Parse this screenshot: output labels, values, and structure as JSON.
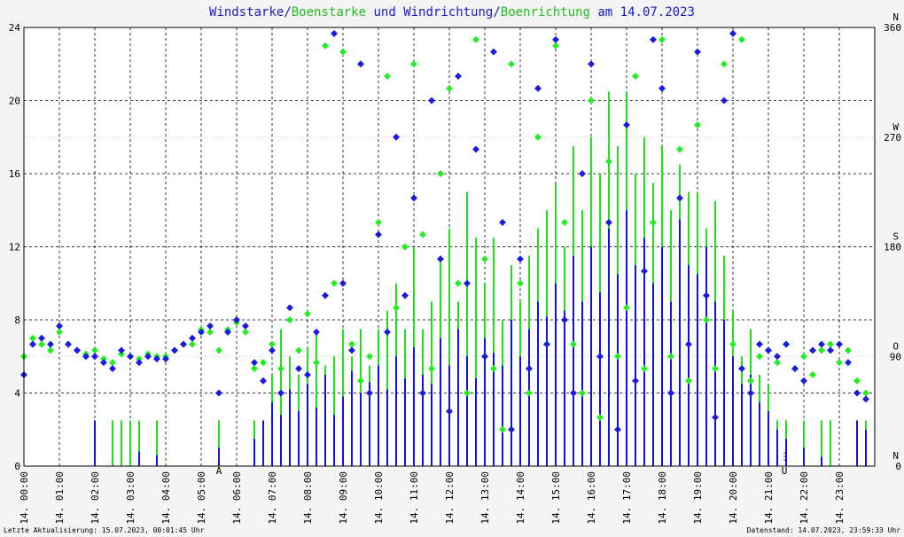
{
  "chart_data": {
    "type": "combo",
    "title_parts": [
      {
        "text": "Windstarke",
        "color": "#1a1ac8"
      },
      {
        "text": "/",
        "color": "#1a1ac8"
      },
      {
        "text": "Boenstarke",
        "color": "#22c022"
      },
      {
        "text": " und ",
        "color": "#1a1ac8"
      },
      {
        "text": "Windrichtung",
        "color": "#1a1ac8"
      },
      {
        "text": "/",
        "color": "#1a1ac8"
      },
      {
        "text": "Boenrichtung",
        "color": "#22c022"
      },
      {
        "text": " am 14.07.2023",
        "color": "#1a1ac8"
      }
    ],
    "xlim": [
      0,
      24
    ],
    "xticks": [
      {
        "value": 0,
        "label": "14. 00:00"
      },
      {
        "value": 1,
        "label": "14. 01:00"
      },
      {
        "value": 2,
        "label": "14. 02:00"
      },
      {
        "value": 3,
        "label": "14. 03:00"
      },
      {
        "value": 4,
        "label": "14. 04:00"
      },
      {
        "value": 5,
        "label": "14. 05:00"
      },
      {
        "value": 6,
        "label": "14. 06:00"
      },
      {
        "value": 7,
        "label": "14. 07:00"
      },
      {
        "value": 8,
        "label": "14. 08:00"
      },
      {
        "value": 9,
        "label": "14. 09:00"
      },
      {
        "value": 10,
        "label": "14. 10:00"
      },
      {
        "value": 11,
        "label": "14. 11:00"
      },
      {
        "value": 12,
        "label": "14. 12:00"
      },
      {
        "value": 13,
        "label": "14. 13:00"
      },
      {
        "value": 14,
        "label": "14. 14:00"
      },
      {
        "value": 15,
        "label": "14. 15:00"
      },
      {
        "value": 16,
        "label": "14. 16:00"
      },
      {
        "value": 17,
        "label": "14. 17:00"
      },
      {
        "value": 18,
        "label": "14. 18:00"
      },
      {
        "value": 19,
        "label": "14. 19:00"
      },
      {
        "value": 20,
        "label": "14. 20:00"
      },
      {
        "value": 21,
        "label": "14. 21:00"
      },
      {
        "value": 22,
        "label": "14. 22:00"
      },
      {
        "value": 23,
        "label": "14. 23:00"
      }
    ],
    "ylim": [
      0,
      24
    ],
    "yticks": [
      0,
      4,
      8,
      12,
      16,
      20,
      24
    ],
    "y2lim": [
      0,
      360
    ],
    "y2ticks": [
      0,
      90,
      180,
      270,
      360
    ],
    "y2tick_directions": [
      "N",
      "O",
      "S",
      "W",
      "N"
    ],
    "grid": true,
    "events": [
      {
        "x": 5.5,
        "label": "A"
      },
      {
        "x": 21.45,
        "label": "U"
      }
    ],
    "x": [
      0,
      0.25,
      0.5,
      0.75,
      1,
      1.25,
      1.5,
      1.75,
      2,
      2.25,
      2.5,
      2.75,
      3,
      3.25,
      3.5,
      3.75,
      4,
      4.25,
      4.5,
      4.75,
      5,
      5.25,
      5.5,
      5.75,
      6,
      6.25,
      6.5,
      6.75,
      7,
      7.25,
      7.5,
      7.75,
      8,
      8.25,
      8.5,
      8.75,
      9,
      9.25,
      9.5,
      9.75,
      10,
      10.25,
      10.5,
      10.75,
      11,
      11.25,
      11.5,
      11.75,
      12,
      12.25,
      12.5,
      12.75,
      13,
      13.25,
      13.5,
      13.75,
      14,
      14.25,
      14.5,
      14.75,
      15,
      15.25,
      15.5,
      15.75,
      16,
      16.25,
      16.5,
      16.75,
      17,
      17.25,
      17.5,
      17.75,
      18,
      18.25,
      18.5,
      18.75,
      19,
      19.25,
      19.5,
      19.75,
      20,
      20.25,
      20.5,
      20.75,
      21,
      21.25,
      21.5,
      21.75,
      22,
      22.25,
      22.5,
      22.75,
      23,
      23.25,
      23.5,
      23.75
    ],
    "series": [
      {
        "name": "Boenstarke",
        "type": "bar",
        "color": "#22dd22",
        "values": [
          0,
          0,
          0,
          0,
          0,
          0,
          0,
          0,
          2.5,
          0,
          2.5,
          2.5,
          2.5,
          2.5,
          0,
          2.5,
          0,
          0,
          0,
          0,
          0,
          0,
          2.5,
          0,
          0,
          0,
          2.5,
          2.5,
          5.0,
          7.5,
          6.0,
          5.0,
          6.5,
          7.5,
          5.5,
          6.0,
          7.5,
          6.0,
          7.5,
          5.5,
          7.5,
          8.5,
          10.0,
          7.5,
          12.0,
          7.5,
          9.0,
          11.5,
          13.0,
          9.0,
          15.0,
          12.5,
          10.0,
          12.5,
          8.0,
          11.0,
          9.0,
          11.5,
          13.0,
          14.0,
          15.5,
          12.0,
          17.5,
          14.0,
          18.0,
          16.0,
          20.5,
          17.5,
          20.5,
          16.0,
          18.0,
          15.5,
          17.5,
          14.0,
          16.5,
          15.0,
          15.0,
          13.0,
          14.5,
          11.5,
          8.5,
          6.0,
          7.5,
          5.0,
          4.5,
          2.5,
          2.5,
          0,
          2.5,
          0,
          2.5,
          2.5,
          0,
          0,
          2.5,
          2.5
        ]
      },
      {
        "name": "Windstarke",
        "type": "bar",
        "color": "#1111dd",
        "values": [
          0,
          0,
          0,
          0,
          0,
          0,
          0,
          0,
          2.5,
          0,
          0,
          0,
          0,
          0.8,
          0,
          0.6,
          0,
          0,
          0,
          0,
          0,
          0,
          1.0,
          0,
          0,
          0,
          1.5,
          2.5,
          3.5,
          2.8,
          4.2,
          3.0,
          4.5,
          3.2,
          5.0,
          2.8,
          3.8,
          5.2,
          4.0,
          4.6,
          5.5,
          4.2,
          6.0,
          4.8,
          6.5,
          5.0,
          4.5,
          7.0,
          5.5,
          7.5,
          6.0,
          4.8,
          7.0,
          6.2,
          5.5,
          8.0,
          6.0,
          7.5,
          9.0,
          8.2,
          10.0,
          8.5,
          11.5,
          9.0,
          12.0,
          9.5,
          13.0,
          10.5,
          14.0,
          11.0,
          12.5,
          10.0,
          12.0,
          9.0,
          13.5,
          11.0,
          10.5,
          12.0,
          9.0,
          8.0,
          6.0,
          4.5,
          5.0,
          3.5,
          3.0,
          2.0,
          1.5,
          0,
          1.0,
          0,
          0.5,
          0,
          0,
          0,
          2.5,
          2.0
        ]
      },
      {
        "name": "Boenrichtung",
        "type": "scatter",
        "axis": "y2",
        "color": "#22ee22",
        "values": [
          90,
          105,
          100,
          95,
          110,
          100,
          95,
          92,
          95,
          88,
          85,
          92,
          90,
          88,
          92,
          90,
          90,
          95,
          100,
          100,
          112,
          110,
          95,
          112,
          118,
          110,
          80,
          85,
          100,
          80,
          120,
          95,
          125,
          85,
          345,
          150,
          340,
          100,
          70,
          90,
          200,
          320,
          130,
          180,
          330,
          190,
          80,
          240,
          310,
          150,
          60,
          350,
          170,
          80,
          30,
          330,
          150,
          60,
          270,
          100,
          345,
          200,
          100,
          60,
          300,
          40,
          250,
          90,
          130,
          320,
          80,
          200,
          350,
          90,
          260,
          70,
          280,
          120,
          80,
          330,
          100,
          350,
          70,
          90,
          95,
          85,
          100,
          80,
          90,
          75,
          95,
          100,
          85,
          95,
          70,
          60
        ]
      },
      {
        "name": "Windrichtung",
        "type": "scatter",
        "axis": "y2",
        "color": "#1a1ae0",
        "values": [
          75,
          100,
          105,
          100,
          115,
          100,
          95,
          90,
          90,
          85,
          80,
          95,
          90,
          85,
          90,
          88,
          88,
          95,
          100,
          105,
          110,
          115,
          60,
          110,
          120,
          115,
          85,
          70,
          95,
          60,
          130,
          80,
          75,
          110,
          140,
          355,
          150,
          95,
          330,
          60,
          190,
          110,
          270,
          140,
          220,
          60,
          300,
          170,
          45,
          320,
          150,
          260,
          90,
          340,
          200,
          30,
          170,
          80,
          310,
          100,
          350,
          120,
          60,
          240,
          330,
          90,
          200,
          30,
          280,
          70,
          160,
          350,
          310,
          60,
          220,
          100,
          340,
          140,
          40,
          300,
          355,
          80,
          60,
          100,
          95,
          90,
          100,
          80,
          70,
          95,
          100,
          95,
          100,
          85,
          60,
          55
        ]
      }
    ],
    "footer_left": "Letzte Aktualisierung: 15.07.2023, 00:01:45 Uhr",
    "footer_right": "Datenstand: 14.07.2023, 23:59:33 Uhr"
  }
}
